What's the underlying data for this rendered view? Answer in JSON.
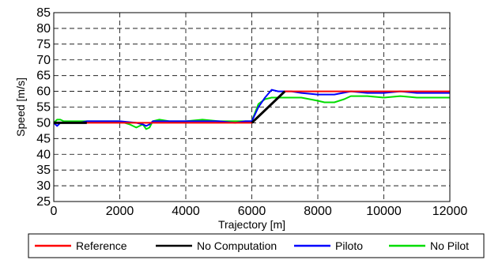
{
  "chart_data": {
    "type": "line",
    "title": "",
    "xlabel": "Trajectory [m]",
    "ylabel": "Speed [m/s]",
    "xlim": [
      0,
      12000
    ],
    "ylim": [
      25,
      85
    ],
    "xticks": [
      0,
      2000,
      4000,
      6000,
      8000,
      10000,
      12000
    ],
    "yticks": [
      25,
      30,
      35,
      40,
      45,
      50,
      55,
      60,
      65,
      70,
      75,
      80,
      85
    ],
    "grid": true,
    "grid_style": "dashed",
    "legend_position": "bottom-outside",
    "series": [
      {
        "name": "Reference",
        "color": "#ff0000",
        "x": [
          0,
          6000,
          7000,
          12000
        ],
        "y": [
          50,
          50,
          60,
          60
        ]
      },
      {
        "name": "No Computation",
        "color": "#000000",
        "x": [
          0,
          1000,
          1001,
          6000,
          7000
        ],
        "y": [
          50,
          50,
          null,
          50,
          60
        ]
      },
      {
        "name": "Piloto",
        "color": "#0000ff",
        "x": [
          0,
          100,
          200,
          300,
          500,
          800,
          1000,
          1500,
          2000,
          2500,
          2700,
          2800,
          2900,
          3000,
          3200,
          3500,
          4000,
          4500,
          5000,
          5500,
          5800,
          6000,
          6200,
          6400,
          6600,
          6800,
          7000,
          7200,
          7500,
          8000,
          8500,
          9000,
          9500,
          10000,
          10500,
          11000,
          11500,
          12000
        ],
        "y": [
          50,
          49,
          50,
          50,
          50,
          50,
          50.5,
          50.5,
          50.5,
          50,
          49.5,
          49,
          49.5,
          50.5,
          50.5,
          50.5,
          50.5,
          50.5,
          50.5,
          50,
          50.5,
          50.5,
          55,
          58,
          60.5,
          60,
          60,
          60,
          59.5,
          59,
          59,
          60,
          59.5,
          59.5,
          60,
          59.5,
          59.5,
          59.5
        ]
      },
      {
        "name": "No Pilot",
        "color": "#00dd00",
        "x": [
          0,
          100,
          200,
          300,
          500,
          800,
          1000,
          1500,
          2000,
          2300,
          2500,
          2700,
          2800,
          2900,
          3000,
          3200,
          3500,
          4000,
          4500,
          5000,
          5500,
          6000,
          6200,
          6400,
          6600,
          7000,
          7500,
          8000,
          8200,
          8500,
          8800,
          9000,
          9500,
          10000,
          10500,
          11000,
          11500,
          12000
        ],
        "y": [
          50,
          51,
          51,
          50.5,
          50.5,
          50.5,
          50.5,
          50.5,
          50.5,
          49.5,
          48.5,
          49.5,
          48,
          48.5,
          50.5,
          51,
          50.5,
          50.5,
          51,
          50.5,
          50.5,
          50.5,
          56,
          57.5,
          58,
          58,
          58,
          57,
          56.5,
          56.5,
          57.5,
          58.5,
          58.5,
          58,
          58.5,
          58,
          58,
          58
        ]
      }
    ]
  }
}
